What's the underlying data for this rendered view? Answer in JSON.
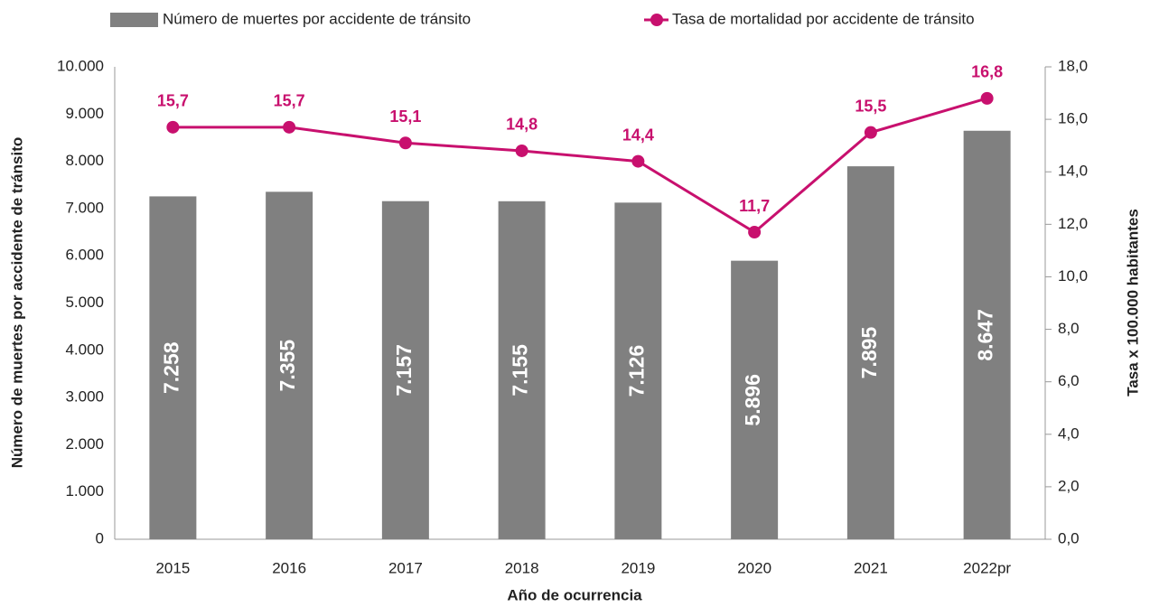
{
  "chart_data": {
    "type": "bar",
    "categories": [
      "2015",
      "2016",
      "2017",
      "2018",
      "2019",
      "2020",
      "2021",
      "2022pr"
    ],
    "series": [
      {
        "name": "Número de muertes por accidente de tránsito",
        "type": "bar",
        "axis": "y",
        "color": "#808080",
        "values": [
          7258,
          7355,
          7157,
          7155,
          7126,
          5896,
          7895,
          8647
        ],
        "value_labels": [
          "7.258",
          "7.355",
          "7.157",
          "7.155",
          "7.126",
          "5.896",
          "7.895",
          "8.647"
        ]
      },
      {
        "name": "Tasa de mortalidad por accidente de tránsito",
        "type": "line",
        "axis": "y2",
        "color": "#c8106e",
        "values": [
          15.7,
          15.7,
          15.1,
          14.8,
          14.4,
          11.7,
          15.5,
          16.8
        ],
        "value_labels": [
          "15,7",
          "15,7",
          "15,1",
          "14,8",
          "14,4",
          "11,7",
          "15,5",
          "16,8"
        ]
      }
    ],
    "ylabel": "Número de muertes por accidente de tránsito",
    "y2label": "Tasa x 100.000 habitantes",
    "xlabel": "Año de ocurrencia",
    "ylim": [
      0,
      10000
    ],
    "yticks": [
      0,
      {
        "value": 1000,
        "label": "1.000"
      },
      {
        "value": 2000,
        "label": "2.000"
      },
      {
        "value": 3000,
        "label": "3.000"
      },
      {
        "value": 4000,
        "label": "4.000"
      },
      {
        "value": 5000,
        "label": "5.000"
      },
      {
        "value": 6000,
        "label": "6.000"
      },
      {
        "value": 7000,
        "label": "7.000"
      },
      {
        "value": 8000,
        "label": "8.000"
      },
      {
        "value": 9000,
        "label": "9.000"
      },
      {
        "value": 10000,
        "label": "10.000"
      }
    ],
    "y2lim": [
      0,
      18
    ],
    "y2ticks": [
      {
        "value": 0,
        "label": "0,0"
      },
      {
        "value": 2,
        "label": "2,0"
      },
      {
        "value": 4,
        "label": "4,0"
      },
      {
        "value": 6,
        "label": "6,0"
      },
      {
        "value": 8,
        "label": "8,0"
      },
      {
        "value": 10,
        "label": "10,0"
      },
      {
        "value": 12,
        "label": "12,0"
      },
      {
        "value": 14,
        "label": "14,0"
      },
      {
        "value": 16,
        "label": "16,0"
      },
      {
        "value": 18,
        "label": "18,0"
      }
    ],
    "legend": "top"
  }
}
